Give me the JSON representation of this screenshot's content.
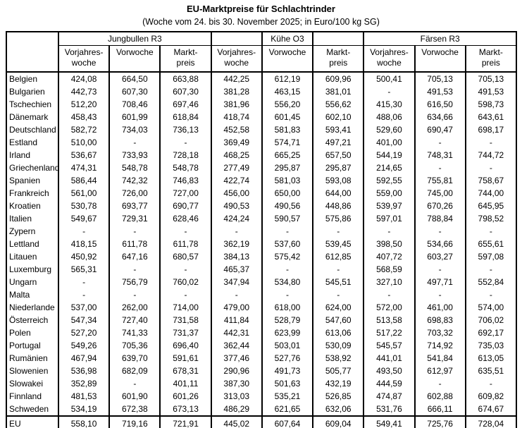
{
  "title": "EU-Marktpreise für Schlachtrinder",
  "subtitle": "(Woche vom 24. bis 30. November 2025; in Euro/100 kg SG)",
  "table": {
    "group_headers": [
      "Jungbullen R3",
      "Kühe O3",
      "Färsen R3"
    ],
    "sub_headers": [
      "Vorjahres-\nwoche",
      "Vorwoche",
      "Markt-\npreis",
      "Vorjahres-\nwoche",
      "Vorwoche",
      "Markt-\npreis",
      "Vorjahres-\nwoche",
      "Vorwoche",
      "Markt-\npreis"
    ],
    "rows": [
      {
        "country": "Belgien",
        "values": [
          "424,08",
          "664,50",
          "663,88",
          "442,25",
          "612,19",
          "609,96",
          "500,41",
          "705,13",
          "705,13"
        ]
      },
      {
        "country": "Bulgarien",
        "values": [
          "442,73",
          "607,30",
          "607,30",
          "381,28",
          "463,15",
          "381,01",
          "-",
          "491,53",
          "491,53"
        ]
      },
      {
        "country": "Tschechien",
        "values": [
          "512,20",
          "708,46",
          "697,46",
          "381,96",
          "556,20",
          "556,62",
          "415,30",
          "616,50",
          "598,73"
        ]
      },
      {
        "country": "Dänemark",
        "values": [
          "458,43",
          "601,99",
          "618,84",
          "418,74",
          "601,45",
          "602,10",
          "488,06",
          "634,66",
          "643,61"
        ]
      },
      {
        "country": "Deutschland",
        "values": [
          "582,72",
          "734,03",
          "736,13",
          "452,58",
          "581,83",
          "593,41",
          "529,60",
          "690,47",
          "698,17"
        ]
      },
      {
        "country": "Estland",
        "values": [
          "510,00",
          "-",
          "-",
          "369,49",
          "574,71",
          "497,21",
          "401,00",
          "-",
          "-"
        ]
      },
      {
        "country": "Irland",
        "values": [
          "536,67",
          "733,93",
          "728,18",
          "468,25",
          "665,25",
          "657,50",
          "544,19",
          "748,31",
          "744,72"
        ]
      },
      {
        "country": "Griechenland",
        "values": [
          "474,31",
          "548,78",
          "548,78",
          "277,49",
          "295,87",
          "295,87",
          "214,65",
          "-",
          "-"
        ]
      },
      {
        "country": "Spanien",
        "values": [
          "586,44",
          "742,32",
          "746,83",
          "422,74",
          "581,03",
          "593,08",
          "592,55",
          "755,81",
          "758,67"
        ]
      },
      {
        "country": "Frankreich",
        "values": [
          "561,00",
          "726,00",
          "727,00",
          "456,00",
          "650,00",
          "644,00",
          "559,00",
          "745,00",
          "744,00"
        ]
      },
      {
        "country": "Kroatien",
        "values": [
          "530,78",
          "693,77",
          "690,77",
          "490,53",
          "490,56",
          "448,86",
          "539,97",
          "670,26",
          "645,95"
        ]
      },
      {
        "country": "Italien",
        "values": [
          "549,67",
          "729,31",
          "628,46",
          "424,24",
          "590,57",
          "575,86",
          "597,01",
          "788,84",
          "798,52"
        ]
      },
      {
        "country": "Zypern",
        "values": [
          "-",
          "-",
          "-",
          "-",
          "-",
          "-",
          "-",
          "-",
          "-"
        ]
      },
      {
        "country": "Lettland",
        "values": [
          "418,15",
          "611,78",
          "611,78",
          "362,19",
          "537,60",
          "539,45",
          "398,50",
          "534,66",
          "655,61"
        ]
      },
      {
        "country": "Litauen",
        "values": [
          "450,92",
          "647,16",
          "680,57",
          "384,13",
          "575,42",
          "612,85",
          "407,72",
          "603,27",
          "597,08"
        ]
      },
      {
        "country": "Luxemburg",
        "values": [
          "565,31",
          "-",
          "-",
          "465,37",
          "-",
          "-",
          "568,59",
          "-",
          "-"
        ]
      },
      {
        "country": "Ungarn",
        "values": [
          "-",
          "756,79",
          "760,02",
          "347,94",
          "534,80",
          "545,51",
          "327,10",
          "497,71",
          "552,84"
        ]
      },
      {
        "country": "Malta",
        "values": [
          "-",
          "-",
          "-",
          "-",
          "-",
          "-",
          "-",
          "-",
          "-"
        ]
      },
      {
        "country": "Niederlande",
        "values": [
          "537,00",
          "262,00",
          "714,00",
          "479,00",
          "618,00",
          "624,00",
          "572,00",
          "461,00",
          "574,00"
        ]
      },
      {
        "country": "Österreich",
        "values": [
          "547,34",
          "727,40",
          "731,58",
          "411,84",
          "528,79",
          "547,60",
          "513,58",
          "698,83",
          "706,02"
        ]
      },
      {
        "country": "Polen",
        "values": [
          "527,20",
          "741,33",
          "731,37",
          "442,31",
          "623,99",
          "613,06",
          "517,22",
          "703,32",
          "692,17"
        ]
      },
      {
        "country": "Portugal",
        "values": [
          "549,26",
          "705,36",
          "696,40",
          "362,44",
          "503,01",
          "530,09",
          "545,57",
          "714,92",
          "735,03"
        ]
      },
      {
        "country": "Rumänien",
        "values": [
          "467,94",
          "639,70",
          "591,61",
          "377,46",
          "527,76",
          "538,92",
          "441,01",
          "541,84",
          "613,05"
        ]
      },
      {
        "country": "Slowenien",
        "values": [
          "536,98",
          "682,09",
          "678,31",
          "290,96",
          "491,73",
          "505,77",
          "493,50",
          "612,97",
          "635,51"
        ]
      },
      {
        "country": "Slowakei",
        "values": [
          "352,89",
          "-",
          "401,11",
          "387,30",
          "501,63",
          "432,19",
          "444,59",
          "-",
          "-"
        ]
      },
      {
        "country": "Finnland",
        "values": [
          "481,53",
          "601,90",
          "601,26",
          "313,03",
          "535,21",
          "526,85",
          "474,87",
          "602,88",
          "609,82"
        ]
      },
      {
        "country": "Schweden",
        "values": [
          "534,19",
          "672,38",
          "673,13",
          "486,29",
          "621,65",
          "632,06",
          "531,76",
          "666,11",
          "674,67"
        ]
      }
    ],
    "eu_row": {
      "country": "EU",
      "values": [
        "558,10",
        "719,16",
        "721,91",
        "445,02",
        "607,64",
        "609,04",
        "549,41",
        "725,76",
        "728,04"
      ]
    }
  }
}
